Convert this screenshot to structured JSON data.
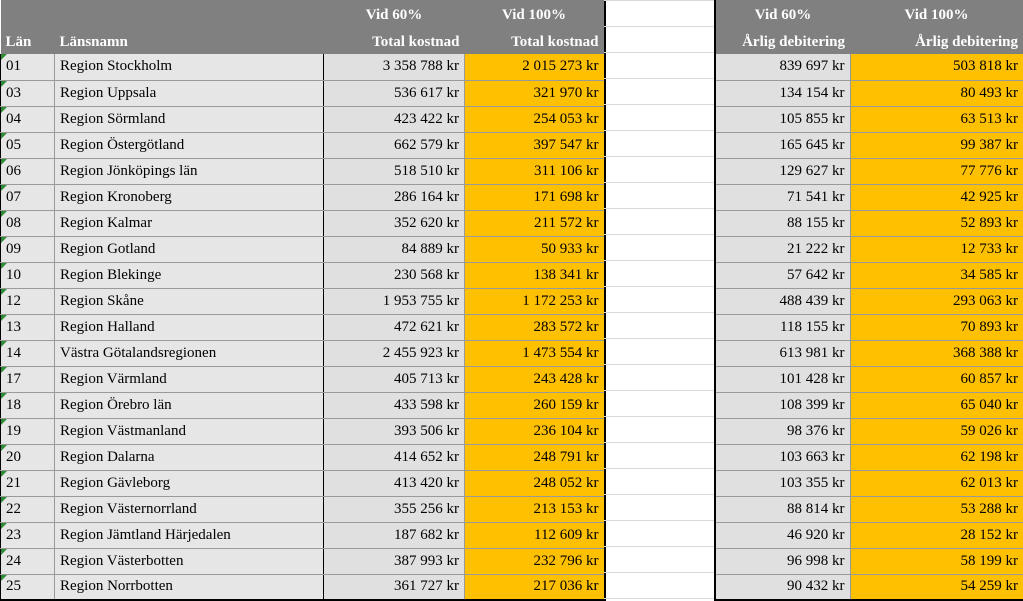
{
  "header": {
    "vid60": "Vid 60%",
    "vid100": "Vid 100%",
    "lan": "Län",
    "lansnamn": "Länsnamn",
    "total_kostnad": "Total kostnad",
    "arlig_debitering": "Årlig debitering"
  },
  "rows": [
    {
      "code": "01",
      "name": "Region Stockholm",
      "t60": "3 358 788 kr",
      "t100": "2 015 273 kr",
      "a60": "839 697 kr",
      "a100": "503 818 kr"
    },
    {
      "code": "03",
      "name": "Region Uppsala",
      "t60": "536 617 kr",
      "t100": "321 970 kr",
      "a60": "134 154 kr",
      "a100": "80 493 kr"
    },
    {
      "code": "04",
      "name": "Region Sörmland",
      "t60": "423 422 kr",
      "t100": "254 053 kr",
      "a60": "105 855 kr",
      "a100": "63 513 kr"
    },
    {
      "code": "05",
      "name": "Region Östergötland",
      "t60": "662 579 kr",
      "t100": "397 547 kr",
      "a60": "165 645 kr",
      "a100": "99 387 kr"
    },
    {
      "code": "06",
      "name": "Region Jönköpings län",
      "t60": "518 510 kr",
      "t100": "311 106 kr",
      "a60": "129 627 kr",
      "a100": "77 776 kr"
    },
    {
      "code": "07",
      "name": "Region Kronoberg",
      "t60": "286 164 kr",
      "t100": "171 698 kr",
      "a60": "71 541 kr",
      "a100": "42 925 kr"
    },
    {
      "code": "08",
      "name": "Region Kalmar",
      "t60": "352 620 kr",
      "t100": "211 572 kr",
      "a60": "88 155 kr",
      "a100": "52 893 kr"
    },
    {
      "code": "09",
      "name": "Region Gotland",
      "t60": "84 889 kr",
      "t100": "50 933 kr",
      "a60": "21 222 kr",
      "a100": "12 733 kr"
    },
    {
      "code": "10",
      "name": "Region Blekinge",
      "t60": "230 568 kr",
      "t100": "138 341 kr",
      "a60": "57 642 kr",
      "a100": "34 585 kr"
    },
    {
      "code": "12",
      "name": "Region Skåne",
      "t60": "1 953 755 kr",
      "t100": "1 172 253 kr",
      "a60": "488 439 kr",
      "a100": "293 063 kr"
    },
    {
      "code": "13",
      "name": "Region Halland",
      "t60": "472 621 kr",
      "t100": "283 572 kr",
      "a60": "118 155 kr",
      "a100": "70 893 kr"
    },
    {
      "code": "14",
      "name": "Västra Götalandsregionen",
      "t60": "2 455 923 kr",
      "t100": "1 473 554 kr",
      "a60": "613 981 kr",
      "a100": "368 388 kr"
    },
    {
      "code": "17",
      "name": "Region Värmland",
      "t60": "405 713 kr",
      "t100": "243 428 kr",
      "a60": "101 428 kr",
      "a100": "60 857 kr"
    },
    {
      "code": "18",
      "name": "Region Örebro län",
      "t60": "433 598 kr",
      "t100": "260 159 kr",
      "a60": "108 399 kr",
      "a100": "65 040 kr"
    },
    {
      "code": "19",
      "name": "Region Västmanland",
      "t60": "393 506 kr",
      "t100": "236 104 kr",
      "a60": "98 376 kr",
      "a100": "59 026 kr"
    },
    {
      "code": "20",
      "name": "Region Dalarna",
      "t60": "414 652 kr",
      "t100": "248 791 kr",
      "a60": "103 663 kr",
      "a100": "62 198 kr"
    },
    {
      "code": "21",
      "name": "Region Gävleborg",
      "t60": "413 420 kr",
      "t100": "248 052 kr",
      "a60": "103 355 kr",
      "a100": "62 013 kr"
    },
    {
      "code": "22",
      "name": "Region Västernorrland",
      "t60": "355 256 kr",
      "t100": "213 153 kr",
      "a60": "88 814 kr",
      "a100": "53 288 kr"
    },
    {
      "code": "23",
      "name": "Region Jämtland Härjedalen",
      "t60": "187 682 kr",
      "t100": "112 609 kr",
      "a60": "46 920 kr",
      "a100": "28 152 kr"
    },
    {
      "code": "24",
      "name": "Region Västerbotten",
      "t60": "387 993 kr",
      "t100": "232 796 kr",
      "a60": "96 998 kr",
      "a100": "58 199 kr"
    },
    {
      "code": "25",
      "name": "Region Norrbotten",
      "t60": "361 727 kr",
      "t100": "217 036 kr",
      "a60": "90 432 kr",
      "a100": "54 259 kr"
    }
  ]
}
